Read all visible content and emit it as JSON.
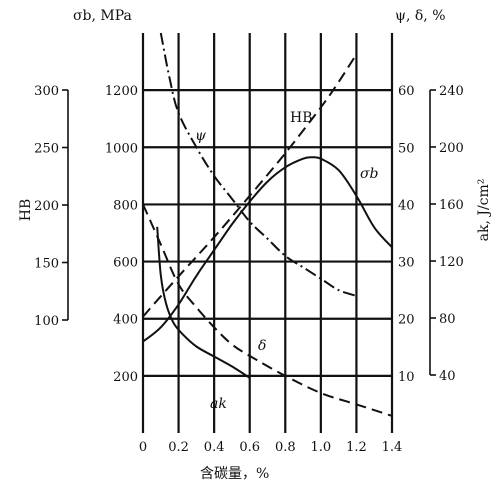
{
  "chart_data": {
    "type": "line",
    "title": "",
    "xlabel": "含碳量，%",
    "xlim": [
      0,
      1.4
    ],
    "x_ticks": [
      "0",
      "0.2",
      "0.4",
      "0.6",
      "0.8",
      "1.0",
      "1.2",
      "1.4"
    ],
    "axes": {
      "sigma_b": {
        "label": "σb, MPa",
        "range": [
          0,
          1400
        ],
        "ticks": [
          "200",
          "400",
          "600",
          "800",
          "1000",
          "1200"
        ]
      },
      "psi_delta": {
        "label": "ψ, δ, %",
        "range": [
          0,
          70
        ],
        "ticks": [
          "10",
          "20",
          "30",
          "40",
          "50",
          "60"
        ]
      },
      "hb": {
        "label": "HB",
        "range": [
          100,
          300
        ],
        "ticks": [
          "100",
          "150",
          "200",
          "250",
          "300"
        ]
      },
      "ak": {
        "label": "ak, J/cm²",
        "range": [
          40,
          240
        ],
        "ticks": [
          "40",
          "80",
          "120",
          "160",
          "200",
          "240"
        ]
      }
    },
    "grid": true,
    "series": [
      {
        "name": "σb",
        "axis": "sigma_b",
        "style": "solid",
        "x": [
          0.0,
          0.1,
          0.2,
          0.3,
          0.4,
          0.5,
          0.6,
          0.7,
          0.8,
          0.9,
          0.95,
          1.0,
          1.1,
          1.2,
          1.3,
          1.4
        ],
        "values": [
          320,
          370,
          450,
          550,
          640,
          730,
          810,
          880,
          930,
          960,
          965,
          960,
          920,
          830,
          720,
          650
        ]
      },
      {
        "name": "ψ",
        "axis": "psi_delta",
        "style": "dash-dot",
        "x": [
          0.1,
          0.15,
          0.2,
          0.3,
          0.4,
          0.5,
          0.6,
          0.7,
          0.8,
          0.9,
          1.0,
          1.1,
          1.2
        ],
        "values": [
          70,
          62,
          56,
          50,
          45,
          41,
          37,
          34,
          31,
          29,
          27,
          25,
          24
        ]
      },
      {
        "name": "δ",
        "axis": "psi_delta",
        "style": "dashed",
        "x": [
          0.0,
          0.1,
          0.2,
          0.3,
          0.4,
          0.5,
          0.6,
          0.8,
          1.0,
          1.2,
          1.4
        ],
        "values": [
          40,
          33,
          26,
          22,
          18.5,
          15.5,
          13.5,
          10,
          7,
          5,
          3
        ]
      },
      {
        "name": "HB",
        "axis": "hb",
        "style": "dashed",
        "x": [
          0.0,
          0.2,
          0.4,
          0.6,
          0.8,
          1.0,
          1.1,
          1.2
        ],
        "values": [
          103,
          138,
          172,
          208,
          245,
          285,
          307,
          331
        ]
      },
      {
        "name": "ak",
        "axis": "ak",
        "style": "solid",
        "x": [
          0.08,
          0.1,
          0.13,
          0.17,
          0.22,
          0.3,
          0.4,
          0.5,
          0.6
        ],
        "values": [
          144,
          110,
          90,
          77,
          69,
          60,
          53,
          46,
          38
        ]
      }
    ],
    "series_labels": [
      "σb",
      "ψ",
      "δ",
      "HB",
      "ak"
    ]
  }
}
